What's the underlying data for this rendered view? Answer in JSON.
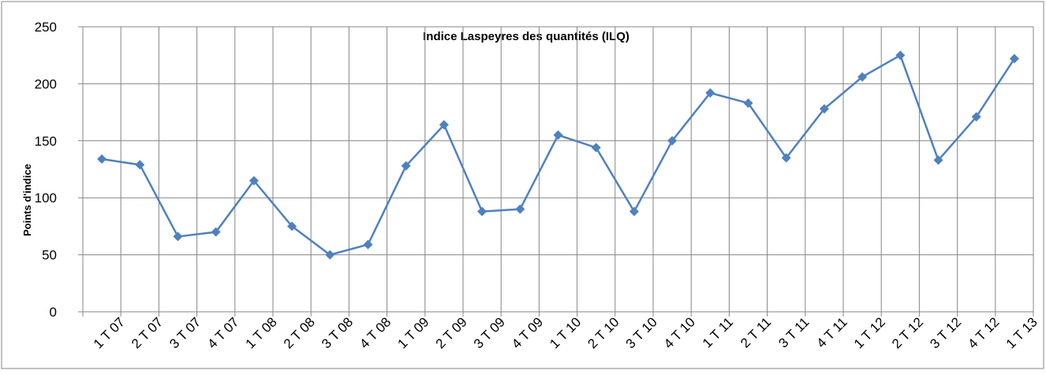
{
  "chart_data": {
    "type": "line",
    "title": "Indice Laspeyres des quantités (ILQ)",
    "y_label": "Points d'indice",
    "categories": [
      "1 T 07",
      "2 T 07",
      "3 T 07",
      "4 T 07",
      "1 T 08",
      "2 T 08",
      "3 T 08",
      "4 T 08",
      "1 T 09",
      "2 T 09",
      "3 T 09",
      "4 T 09",
      "1 T 10",
      "2 T 10",
      "3 T 10",
      "4 T 10",
      "1 T 11",
      "2 T 11",
      "3 T 11",
      "4 T 11",
      "1 T 12",
      "2 T 12",
      "3 T 12",
      "4 T 12",
      "1 T 13"
    ],
    "series": [
      {
        "name": "ILQ",
        "color": "#4f81bd",
        "values": [
          134,
          129,
          66,
          70,
          115,
          75,
          50,
          59,
          128,
          164,
          88,
          90,
          155,
          144,
          88,
          150,
          192,
          183,
          135,
          178,
          206,
          225,
          133,
          171,
          222
        ]
      }
    ],
    "ylim": [
      0,
      250
    ],
    "yticks": [
      0,
      50,
      100,
      150,
      200,
      250
    ],
    "grid": true
  }
}
